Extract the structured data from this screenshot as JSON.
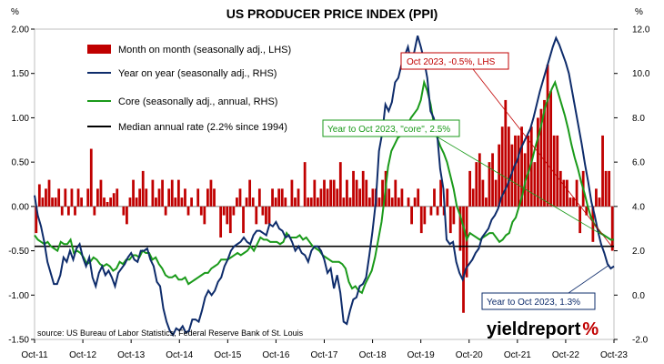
{
  "chart_data": {
    "type": "bar+line",
    "title": "US PRODUCER PRICE INDEX (PPI)",
    "left_unit": "%",
    "right_unit": "%",
    "left_axis": {
      "ylim": [
        -1.5,
        2.0
      ],
      "ticks": [
        "2.00",
        "1.50",
        "1.00",
        "0.50",
        "0.00",
        "-0.50",
        "-1.00",
        "-1.50"
      ]
    },
    "right_axis": {
      "ylim": [
        -2.0,
        12.0
      ],
      "ticks": [
        "12.0",
        "10.0",
        "8.0",
        "6.0",
        "4.0",
        "2.0",
        "0.0",
        "-2.0"
      ]
    },
    "x_ticks": [
      "Oct-11",
      "Oct-12",
      "Oct-13",
      "Oct-14",
      "Oct-15",
      "Oct-16",
      "Oct-17",
      "Oct-18",
      "Oct-19",
      "Oct-20",
      "Oct-21",
      "Oct-22",
      "Oct-23"
    ],
    "grid": false,
    "legend": [
      {
        "label": "Month on month (seasonally adj., LHS)",
        "kind": "bar",
        "color": "#c00000"
      },
      {
        "label": "Year on year (seasonally adj., RHS)",
        "kind": "line",
        "color": "#0e2c6b"
      },
      {
        "label": "Core (seasonally adj., annual, RHS)",
        "kind": "line",
        "color": "#1a9a1a"
      },
      {
        "label": "Median annual rate (2.2% since 1994)",
        "kind": "line",
        "color": "#000000"
      }
    ],
    "series": [
      {
        "name": "Month on month (seasonally adj., LHS)",
        "axis": "left",
        "values": [
          -0.3,
          0.25,
          0.1,
          0.2,
          0.3,
          0.1,
          0.1,
          0.2,
          -0.1,
          0.2,
          -0.1,
          0.2,
          -0.1,
          0.2,
          0.1,
          0.0,
          0.2,
          0.65,
          -0.1,
          0.2,
          0.3,
          0.1,
          0.05,
          0.1,
          0.15,
          0.2,
          0.0,
          -0.1,
          -0.2,
          0.1,
          0.3,
          0.1,
          0.2,
          0.4,
          0.2,
          0.0,
          0.3,
          0.1,
          0.2,
          0.3,
          -0.1,
          0.2,
          0.3,
          0.1,
          0.3,
          0.1,
          0.2,
          -0.1,
          0.1,
          0.0,
          0.2,
          -0.1,
          -0.2,
          0.2,
          0.3,
          0.2,
          0.0,
          -0.35,
          -0.1,
          -0.2,
          -0.3,
          -0.1,
          0.1,
          0.2,
          -0.3,
          0.1,
          0.3,
          0.1,
          -0.2,
          0.2,
          -0.1,
          -0.2,
          -0.2,
          0.2,
          0.1,
          0.2,
          0.2,
          0.1,
          0.0,
          0.3,
          0.1,
          0.2,
          0.0,
          0.5,
          0.1,
          0.1,
          0.3,
          0.1,
          0.2,
          0.3,
          0.2,
          0.3,
          0.3,
          0.2,
          0.5,
          0.1,
          0.3,
          0.1,
          0.4,
          0.3,
          0.2,
          0.4,
          0.3,
          0.1,
          0.2,
          0.2,
          0.1,
          0.3,
          0.4,
          0.2,
          0.1,
          0.3,
          0.1,
          0.2,
          0.0,
          0.1,
          -0.2,
          0.1,
          0.2,
          -0.3,
          -0.2,
          0.0,
          -0.1,
          0.2,
          -0.1,
          0.3,
          -0.1,
          0.2,
          -0.3,
          -0.2,
          0.0,
          -0.5,
          -1.2,
          -0.8,
          0.4,
          0.2,
          0.5,
          0.6,
          0.3,
          0.1,
          0.5,
          0.6,
          0.3,
          0.7,
          0.9,
          1.2,
          0.9,
          0.7,
          0.8,
          0.8,
          0.9,
          0.6,
          0.8,
          0.9,
          0.5,
          1.0,
          1.1,
          1.2,
          1.6,
          1.3,
          0.8,
          0.8,
          0.4,
          0.3,
          0.3,
          0.1,
          0.1,
          0.3,
          -0.3,
          0.4,
          -0.1,
          0.0,
          -0.4,
          0.2,
          0.1,
          0.8,
          0.4,
          0.4,
          -0.5
        ]
      },
      {
        "name": "Year on year (seasonally adj., RHS)",
        "axis": "right",
        "values": [
          4.5,
          3.6,
          3.1,
          2.4,
          1.5,
          1.0,
          0.5,
          0.5,
          0.9,
          1.7,
          1.5,
          2.0,
          1.6,
          2.1,
          2.3,
          1.7,
          1.3,
          1.7,
          0.8,
          0.4,
          1.0,
          1.3,
          0.9,
          1.1,
          0.8,
          0.4,
          1.0,
          1.2,
          1.4,
          1.7,
          1.9,
          1.6,
          1.5,
          2.0,
          2.0,
          2.1,
          1.6,
          1.3,
          0.6,
          0.4,
          -0.6,
          -1.2,
          -1.6,
          -1.8,
          -1.5,
          -1.6,
          -1.4,
          -1.7,
          -1.6,
          -1.1,
          -1.1,
          -1.2,
          -0.7,
          -0.1,
          0.2,
          0.0,
          0.2,
          0.6,
          0.8,
          1.3,
          1.6,
          2.0,
          2.2,
          2.3,
          2.4,
          2.6,
          2.4,
          2.3,
          2.7,
          2.9,
          2.9,
          2.8,
          2.7,
          3.2,
          3.1,
          3.3,
          3.0,
          2.9,
          2.6,
          2.7,
          2.4,
          2.0,
          2.2,
          1.9,
          1.8,
          1.5,
          2.0,
          2.2,
          2.2,
          2.0,
          1.6,
          1.0,
          1.2,
          0.3,
          0.9,
          0.1,
          -1.2,
          -1.3,
          -0.7,
          -0.2,
          -0.1,
          0.4,
          0.5,
          0.8,
          1.8,
          2.9,
          4.2,
          6.5,
          7.3,
          8.6,
          8.3,
          8.7,
          9.6,
          9.8,
          10.4,
          10.8,
          11.2,
          10.5,
          11.0,
          11.7,
          11.2,
          10.6,
          9.8,
          8.3,
          8.0,
          7.4,
          5.7,
          4.8,
          2.5,
          2.3,
          2.4,
          1.5,
          1.0,
          0.7,
          1.2,
          1.4,
          1.6,
          1.9,
          2.1,
          2.6,
          2.8,
          3.0,
          3.4,
          3.6,
          3.9,
          4.4,
          4.7,
          5.0,
          5.4,
          5.8,
          6.1,
          6.6,
          6.9,
          7.2,
          7.5,
          8.0,
          8.6,
          9.2,
          9.7,
          10.2,
          10.7,
          11.2,
          11.6,
          11.3,
          10.9,
          10.5,
          10.0,
          9.2,
          8.4,
          7.6,
          6.8,
          5.9,
          5.1,
          4.2,
          3.6,
          2.9,
          2.3,
          1.9,
          1.4,
          1.2,
          1.3
        ]
      },
      {
        "name": "Core (seasonally adj., annual, RHS)",
        "axis": "right",
        "values": [
          2.7,
          2.5,
          2.4,
          2.3,
          2.4,
          2.2,
          2.1,
          2.0,
          2.4,
          2.3,
          2.3,
          2.5,
          1.9,
          2.0,
          1.9,
          1.7,
          1.4,
          1.5,
          1.7,
          1.6,
          1.4,
          1.3,
          1.4,
          1.3,
          1.1,
          1.2,
          1.5,
          1.4,
          1.6,
          1.6,
          1.8,
          1.8,
          1.7,
          2.0,
          1.9,
          1.9,
          1.6,
          1.7,
          1.4,
          1.2,
          0.9,
          0.8,
          0.8,
          0.9,
          0.7,
          0.7,
          0.8,
          0.5,
          0.6,
          0.7,
          0.8,
          0.9,
          1.0,
          1.0,
          1.2,
          1.3,
          1.4,
          1.6,
          1.6,
          1.6,
          1.7,
          1.8,
          1.9,
          1.8,
          1.9,
          2.0,
          2.2,
          2.0,
          2.3,
          2.6,
          2.5,
          2.5,
          2.4,
          2.4,
          2.4,
          2.3,
          2.4,
          2.8,
          2.6,
          2.6,
          2.6,
          2.7,
          2.5,
          2.6,
          2.4,
          2.2,
          2.1,
          2.0,
          1.8,
          1.7,
          1.6,
          1.5,
          1.5,
          1.5,
          1.4,
          1.2,
          0.6,
          0.3,
          0.4,
          0.2,
          0.1,
          0.5,
          0.8,
          1.1,
          1.7,
          2.5,
          3.3,
          4.5,
          5.8,
          6.5,
          6.8,
          7.1,
          7.2,
          7.4,
          7.7,
          8.0,
          8.2,
          8.4,
          8.8,
          9.6,
          9.2,
          8.6,
          7.7,
          7.1,
          6.7,
          6.4,
          6.0,
          5.4,
          4.8,
          4.0,
          3.6,
          3.1,
          2.5,
          2.8,
          2.7,
          2.6,
          2.5,
          2.6,
          2.7,
          2.8,
          2.8,
          2.6,
          2.4,
          2.5,
          2.7,
          2.8,
          3.3,
          3.5,
          4.0,
          4.5,
          5.2,
          5.6,
          6.1,
          6.7,
          7.2,
          7.8,
          8.5,
          8.9,
          9.3,
          9.6,
          9.1,
          8.6,
          8.1,
          7.5,
          6.8,
          6.2,
          5.7,
          5.1,
          4.6,
          4.0,
          3.5,
          3.2,
          3.0,
          2.8,
          2.7,
          2.6,
          2.5,
          2.5
        ]
      },
      {
        "name": "Median annual rate (2.2% since 1994)",
        "axis": "right",
        "values": [
          2.2
        ]
      }
    ],
    "annotations": [
      {
        "text": "Oct 2023, -0.5%, LHS",
        "color": "#c00000"
      },
      {
        "text": "Year to Oct 2023, \"core\", 2.5%",
        "color": "#1a9a1a"
      },
      {
        "text": "Year to Oct 2023, 1.3%",
        "color": "#0e2c6b"
      }
    ],
    "source": "source: US Bureau of Labor Statistics, Federal Reserve Bank of St. Louis",
    "brand": {
      "main": "yieldreport",
      "accent": "%"
    }
  }
}
